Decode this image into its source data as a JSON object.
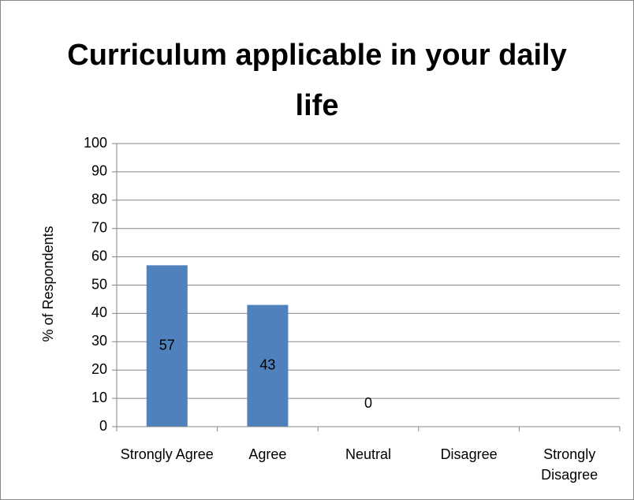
{
  "chart_data": {
    "type": "bar",
    "title": "Curriculum applicable in your daily life",
    "y_label": "% of Respondents",
    "categories": [
      "Strongly Agree",
      "Agree",
      "Neutral",
      "Disagree",
      "Strongly Disagree"
    ],
    "values": [
      57,
      43,
      0,
      null,
      null
    ],
    "color": "#4f81bd",
    "ylim": [
      0,
      100
    ],
    "yticks": [
      0,
      10,
      20,
      30,
      40,
      50,
      60,
      70,
      80,
      90,
      100
    ],
    "grid": true
  }
}
